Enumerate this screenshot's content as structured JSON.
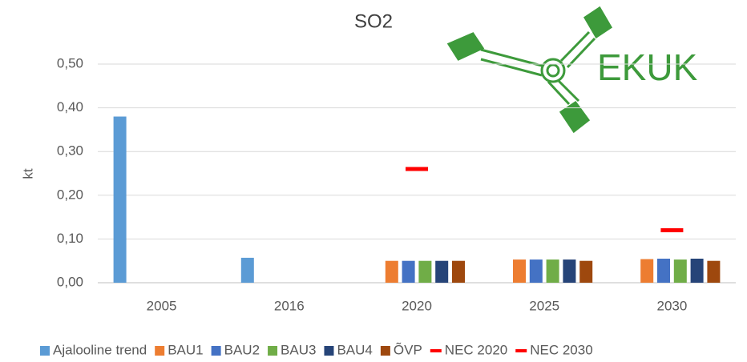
{
  "chart_data": {
    "type": "bar",
    "title": "SO2",
    "y_label": "kt",
    "logo_text": "EKUK",
    "categories": [
      "2005",
      "2016",
      "2020",
      "2025",
      "2030"
    ],
    "series": [
      {
        "name": "Ajalooline trend",
        "color": "#5b9bd5",
        "mark": "bar",
        "values": [
          0.38,
          0.057,
          null,
          null,
          null
        ]
      },
      {
        "name": "BAU1",
        "color": "#ed7d31",
        "mark": "bar",
        "values": [
          null,
          null,
          0.05,
          0.053,
          0.054
        ]
      },
      {
        "name": "BAU2",
        "color": "#4472c4",
        "mark": "bar",
        "values": [
          null,
          null,
          0.05,
          0.053,
          0.055
        ]
      },
      {
        "name": "BAU3",
        "color": "#70ad47",
        "mark": "bar",
        "values": [
          null,
          null,
          0.05,
          0.053,
          0.053
        ]
      },
      {
        "name": "BAU4",
        "color": "#264478",
        "mark": "bar",
        "values": [
          null,
          null,
          0.05,
          0.053,
          0.055
        ]
      },
      {
        "name": "ÕVP",
        "color": "#9e480e",
        "mark": "bar",
        "values": [
          null,
          null,
          0.05,
          0.05,
          0.05
        ]
      },
      {
        "name": "NEC 2020",
        "color": "#ff0000",
        "mark": "dash",
        "values": [
          null,
          null,
          0.26,
          null,
          null
        ]
      },
      {
        "name": "NEC 2030",
        "color": "#ff0000",
        "mark": "dash",
        "values": [
          null,
          null,
          null,
          null,
          0.12
        ]
      }
    ],
    "ylim": [
      0,
      0.5
    ],
    "yticks": [
      {
        "value": 0,
        "label": "0,00"
      },
      {
        "value": 0.1,
        "label": "0,10"
      },
      {
        "value": 0.2,
        "label": "0,20"
      },
      {
        "value": 0.3,
        "label": "0,30"
      },
      {
        "value": 0.4,
        "label": "0,40"
      },
      {
        "value": 0.5,
        "label": "0,50"
      }
    ],
    "grid": true,
    "legend": "bottom"
  }
}
